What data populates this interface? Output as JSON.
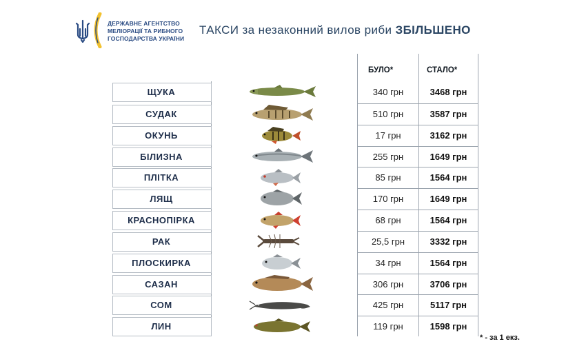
{
  "agency": {
    "name_line1": "ДЕРЖАВНЕ АГЕНТСТВО",
    "name_line2": "МЕЛІОРАЦІЇ ТА РИБНОГО",
    "name_line3": "ГОСПОДАРСТВА УКРАЇНИ",
    "logo_icon": "trident-icon",
    "colors": {
      "blue": "#2a4b83",
      "yellow": "#f2c12e"
    }
  },
  "headline": {
    "text": "ТАКСИ за незаконний вилов риби",
    "emphasis": "ЗБІЛЬШЕНО"
  },
  "table": {
    "col_was": "БУЛО*",
    "col_now": "СТАЛО*",
    "rows": [
      {
        "name": "ЩУКА",
        "was": "340 грн",
        "now": "3468 грн",
        "icon": "pike-icon"
      },
      {
        "name": "СУДАК",
        "was": "510 грн",
        "now": "3587 грн",
        "icon": "zander-icon"
      },
      {
        "name": "ОКУНЬ",
        "was": "17 грн",
        "now": "3162 грн",
        "icon": "perch-icon"
      },
      {
        "name": "БІЛИЗНА",
        "was": "255 грн",
        "now": "1649 грн",
        "icon": "asp-icon"
      },
      {
        "name": "ПЛІТКА",
        "was": "85 грн",
        "now": "1564 грн",
        "icon": "roach-icon"
      },
      {
        "name": "ЛЯЩ",
        "was": "170 грн",
        "now": "1649 грн",
        "icon": "bream-icon"
      },
      {
        "name": "КРАСНОПІРКА",
        "was": "68 грн",
        "now": "1564 грн",
        "icon": "rudd-icon"
      },
      {
        "name": "РАК",
        "was": "25,5 грн",
        "now": "3332 грн",
        "icon": "crayfish-icon"
      },
      {
        "name": "ПЛОСКИРКА",
        "was": "34 грн",
        "now": "1564 грн",
        "icon": "white-bream-icon"
      },
      {
        "name": "САЗАН",
        "was": "306 грн",
        "now": "3706 грн",
        "icon": "carp-icon"
      },
      {
        "name": "СОМ",
        "was": "425 грн",
        "now": "5117 грн",
        "icon": "catfish-icon"
      },
      {
        "name": "ЛИН",
        "was": "119 грн",
        "now": "1598 грн",
        "icon": "tench-icon"
      }
    ]
  },
  "footnote": "* - за 1 екз."
}
